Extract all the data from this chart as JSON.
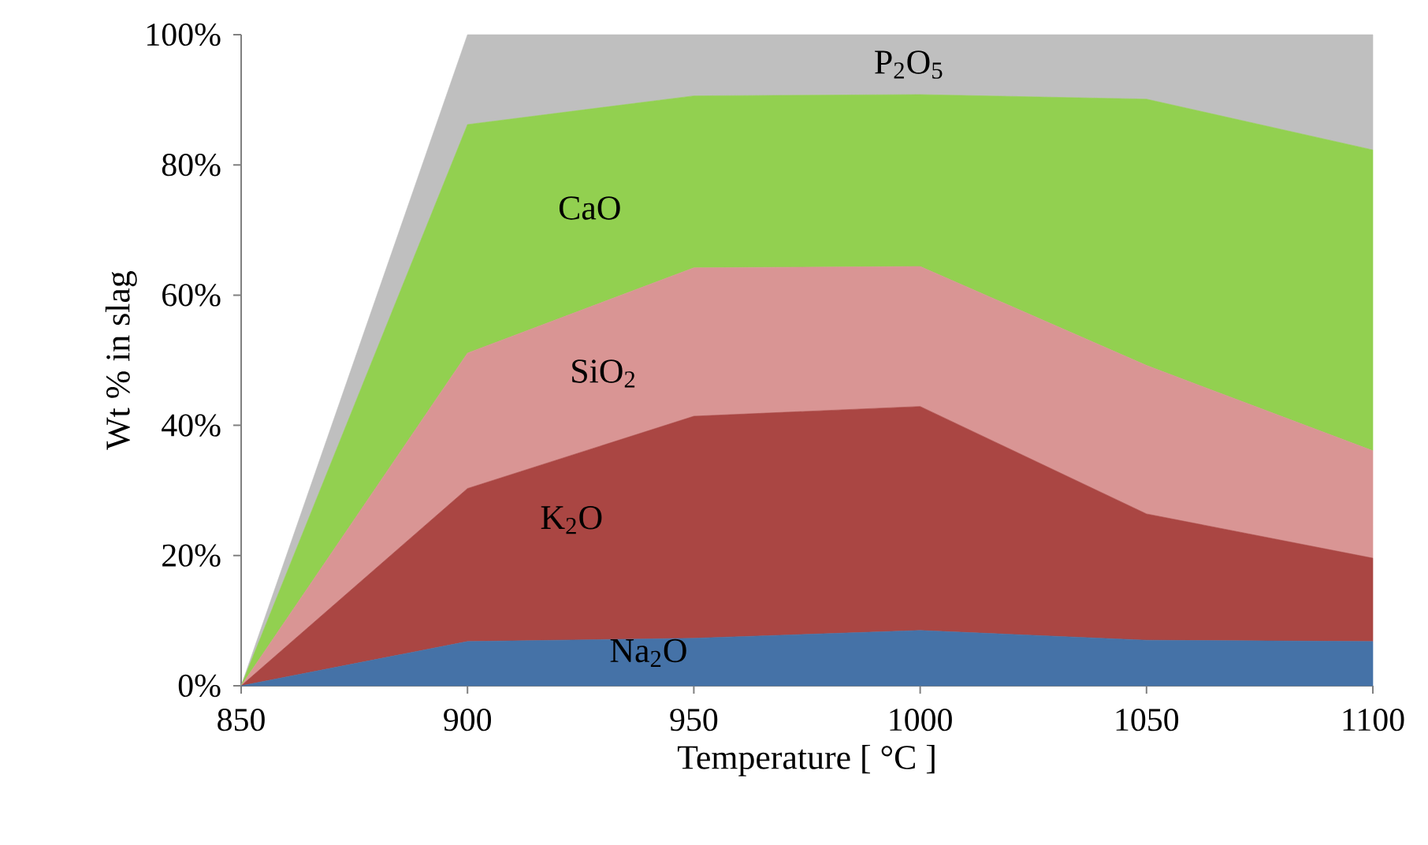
{
  "chart_data": {
    "type": "area",
    "stacked": true,
    "xlabel": "Temperature [ °C ]",
    "ylabel": "Wt % in slag",
    "x": [
      850,
      900,
      950,
      1000,
      1050,
      1100
    ],
    "series": [
      {
        "name": "Na$_{2}$O",
        "color": "#4572a7",
        "values": [
          0,
          6.8,
          7.3,
          8.5,
          7.0,
          6.8
        ]
      },
      {
        "name": "K$_{2}$O",
        "color": "#aa4643",
        "values": [
          0,
          23.5,
          34.1,
          34.4,
          19.4,
          12.8
        ]
      },
      {
        "name": "SiO$_{2}$",
        "color": "#d99594",
        "values": [
          0,
          20.8,
          22.8,
          21.5,
          22.8,
          16.5
        ]
      },
      {
        "name": "CaO",
        "color": "#92d050",
        "values": [
          0,
          35.1,
          26.4,
          26.4,
          40.9,
          46.2
        ]
      },
      {
        "name": "P$_{2}$O$_{5}$",
        "color": "#bfbfbf",
        "values": [
          0,
          13.8,
          9.4,
          9.2,
          9.9,
          17.7
        ]
      }
    ],
    "xlim": [
      850,
      1100
    ],
    "xticks": [
      850,
      900,
      950,
      1000,
      1050,
      1100
    ],
    "ylim": [
      0,
      100
    ],
    "yticks": [
      {
        "value": 0,
        "label": "0%"
      },
      {
        "value": 20,
        "label": "20%"
      },
      {
        "value": 40,
        "label": "40%"
      },
      {
        "value": 60,
        "label": "60%"
      },
      {
        "value": 80,
        "label": "80%"
      },
      {
        "value": 100,
        "label": "100%"
      }
    ],
    "grid": false
  }
}
